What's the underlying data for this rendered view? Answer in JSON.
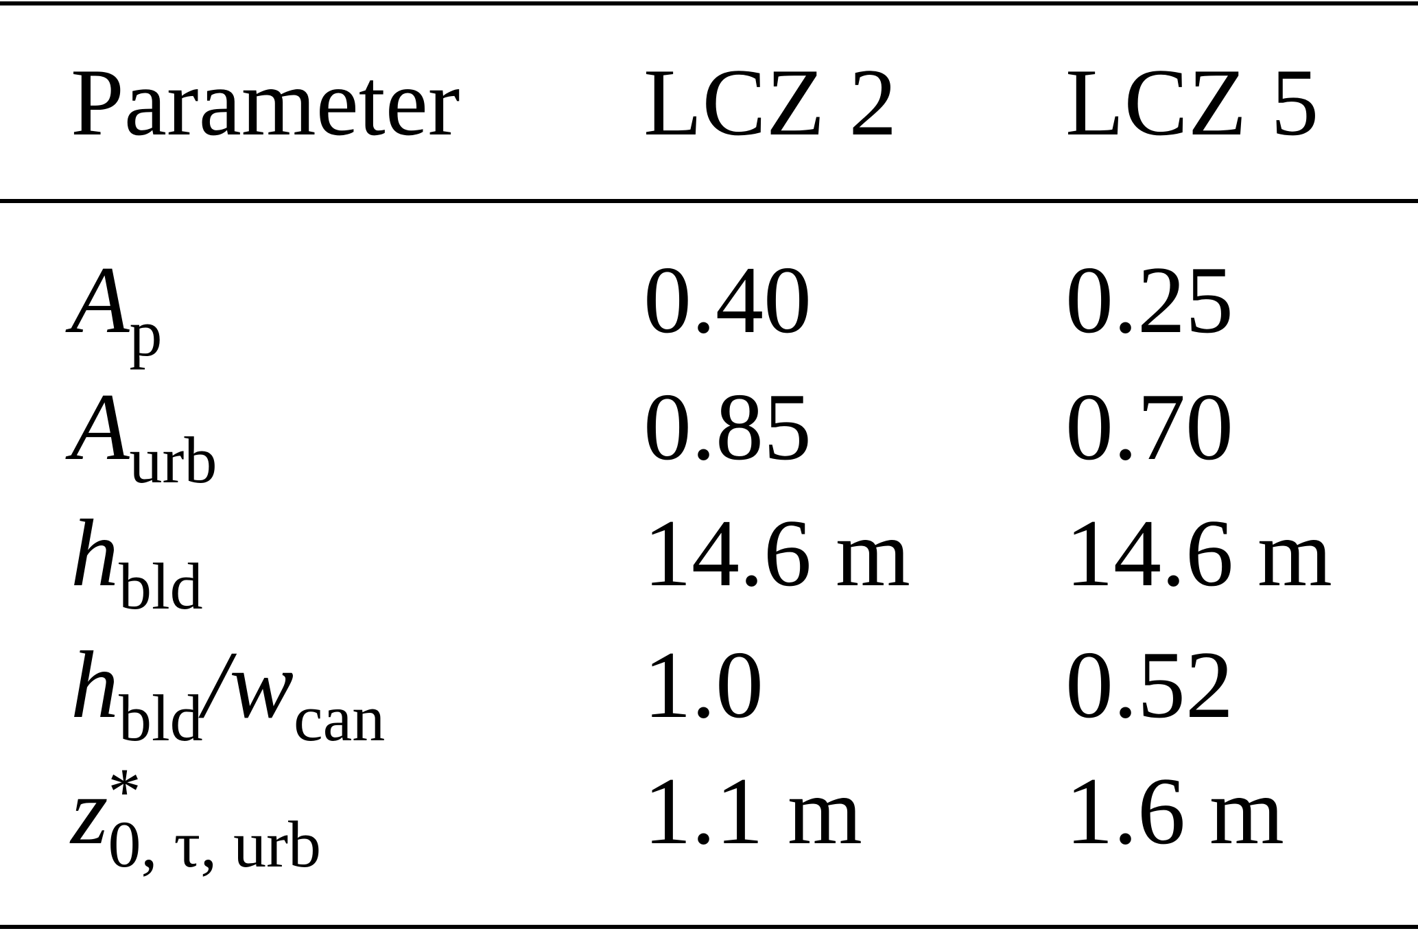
{
  "table": {
    "header": [
      "Parameter",
      "LCZ 2",
      "LCZ 5"
    ],
    "rows": [
      [
        [
          {
            "main": "A",
            "sub": "p"
          }
        ],
        "0.40",
        "0.25"
      ],
      [
        [
          {
            "main": "A",
            "sub": "urb"
          }
        ],
        "0.85",
        "0.70"
      ],
      [
        [
          {
            "main": "h",
            "sub": "bld"
          }
        ],
        "14.6 m",
        "14.6 m"
      ],
      [
        [
          {
            "main": "h",
            "sub": "bld"
          },
          {
            "main": "/"
          },
          {
            "main": "w",
            "sub": "can"
          }
        ],
        "1.0",
        "0.52"
      ],
      [
        [
          {
            "main": "z",
            "sup": "*",
            "sub": "0, τ, urb"
          }
        ],
        "1.1 m",
        "1.6 m"
      ]
    ]
  }
}
